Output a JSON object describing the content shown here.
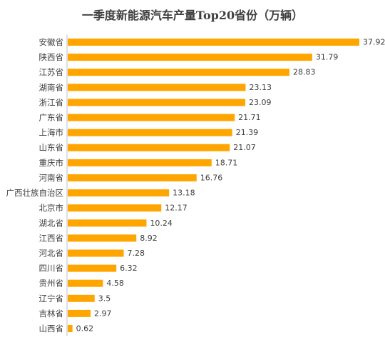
{
  "chart_data": {
    "type": "bar",
    "orientation": "horizontal",
    "title": "一季度新能源汽车产量Top20省份（万辆）",
    "categories": [
      "安徽省",
      "陕西省",
      "江苏省",
      "湖南省",
      "浙江省",
      "广东省",
      "上海市",
      "山东省",
      "重庆市",
      "河南省",
      "广西壮族自治区",
      "北京市",
      "湖北省",
      "江西省",
      "河北省",
      "四川省",
      "贵州省",
      "辽宁省",
      "吉林省",
      "山西省"
    ],
    "values": [
      37.92,
      31.79,
      28.83,
      23.13,
      23.09,
      21.71,
      21.39,
      21.07,
      18.71,
      16.76,
      13.18,
      12.17,
      10.24,
      8.92,
      7.28,
      6.32,
      4.58,
      3.5,
      2.97,
      0.62
    ],
    "value_labels": [
      "37.92",
      "31.79",
      "28.83",
      "23.13",
      "23.09",
      "21.71",
      "21.39",
      "21.07",
      "18.71",
      "16.76",
      "13.18",
      "12.17",
      "10.24",
      "8.92",
      "7.28",
      "6.32",
      "4.58",
      "3.5",
      "2.97",
      "0.62"
    ],
    "bar_color": "#FFA500",
    "axis_color": "#bfbfbf",
    "grid": false,
    "legend": "none"
  }
}
